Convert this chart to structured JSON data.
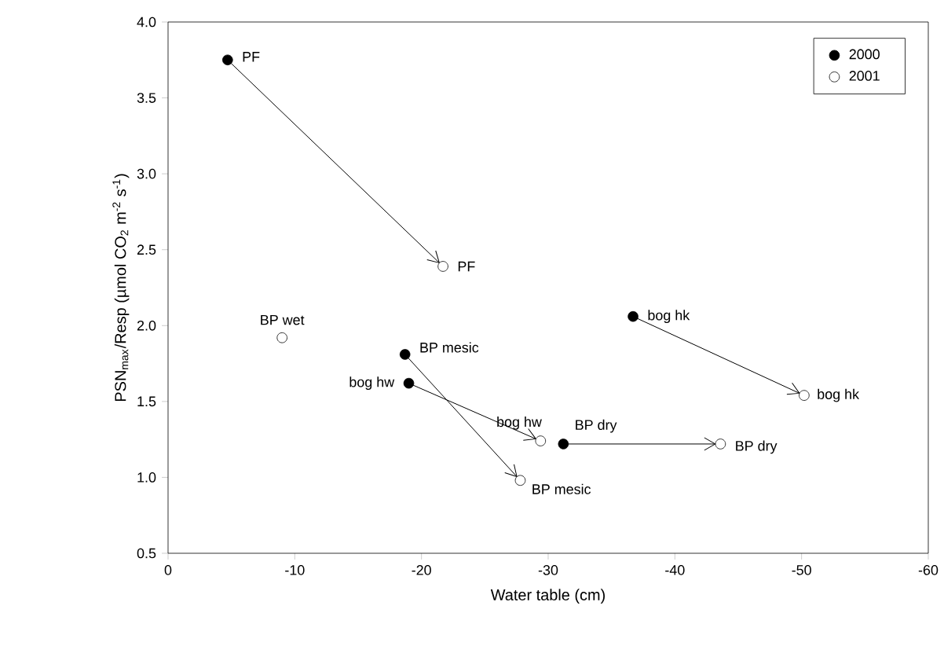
{
  "chart_data": {
    "type": "scatter",
    "xlabel": "Water table (cm)",
    "ylabel": "PSN$_{max}$/Resp (µmol CO$_{2}$ m$^{-2}$ s$^{-1}$)",
    "xlim": [
      0,
      -60
    ],
    "xticks": [
      0,
      -10,
      -20,
      -30,
      -40,
      -50,
      -60
    ],
    "ylim": [
      0.5,
      4.0
    ],
    "yticks": [
      {
        "value": 0.5,
        "label": "0.5"
      },
      {
        "value": 1.0,
        "label": "1.0"
      },
      {
        "value": 1.5,
        "label": "1.5"
      },
      {
        "value": 2.0,
        "label": "2.0"
      },
      {
        "value": 2.5,
        "label": "2.5"
      },
      {
        "value": 3.0,
        "label": "3.0"
      },
      {
        "value": 3.5,
        "label": "3.5"
      },
      {
        "value": 4.0,
        "label": "4.0"
      }
    ],
    "legend": "top right",
    "grid": false,
    "series": [
      {
        "name": "2000",
        "color": "#000000",
        "x": [
          -4.7,
          -18.7,
          -19,
          -31.2,
          -36.7
        ],
        "values": [
          3.75,
          1.81,
          1.62,
          1.22,
          2.06
        ]
      },
      {
        "name": "2001",
        "color": "#000000",
        "x": [
          -21.7,
          -27.8,
          -29.4,
          -43.6,
          -50.2,
          -9
        ],
        "values": [
          2.39,
          0.98,
          1.24,
          1.22,
          1.54,
          1.92
        ]
      }
    ],
    "annotations": [
      {
        "text": "PF",
        "x": -4.7,
        "y": 3.75
      },
      {
        "text": "PF",
        "x": -21.7,
        "y": 2.39
      },
      {
        "text": "BP wet",
        "x": -9,
        "y": 1.92
      },
      {
        "text": "BP mesic",
        "x": -18.7,
        "y": 1.81
      },
      {
        "text": "bog hw",
        "x": -19,
        "y": 1.62
      },
      {
        "text": "bog hw",
        "x": -29.4,
        "y": 1.24
      },
      {
        "text": "BP dry",
        "x": -31.2,
        "y": 1.22
      },
      {
        "text": "BP mesic",
        "x": -27.8,
        "y": 0.98
      },
      {
        "text": "BP dry",
        "x": -43.6,
        "y": 1.22
      },
      {
        "text": "bog hk",
        "x": -36.7,
        "y": 2.06
      },
      {
        "text": "bog hk",
        "x": -50.2,
        "y": 1.54
      }
    ]
  }
}
